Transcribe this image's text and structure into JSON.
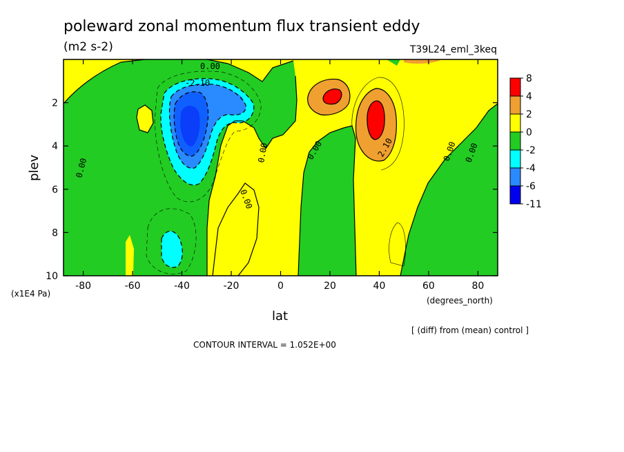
{
  "title": "poleward zonal momentum flux transient eddy",
  "units": "(m2 s-2)",
  "run_name": "T39L24_eml_3keq",
  "diff_note": "[ (diff) from (mean) control ]",
  "contour_interval": "CONTOUR INTERVAL = 1.052E+00",
  "chart_data": {
    "type": "heatmap",
    "xlabel": "lat",
    "xunits": "(degrees_north)",
    "ylabel": "plev",
    "yunits": "(x1E4 Pa)",
    "xlim": [
      -88,
      88
    ],
    "ylim": [
      10,
      0
    ],
    "xticks": [
      "-80",
      "-60",
      "-40",
      "-20",
      "0",
      "20",
      "40",
      "60",
      "80"
    ],
    "yticks": [
      "2",
      "4",
      "6",
      "8",
      "10"
    ],
    "legend": {
      "placement": "right",
      "labels": [
        "8",
        "4",
        "2",
        "0",
        "-2",
        "-4",
        "-6",
        "-11"
      ],
      "colors": [
        "#ff0000",
        "#f0a030",
        "#ffff00",
        "#22cc22",
        "#00ffff",
        "#2a8aff",
        "#0000ee"
      ]
    },
    "contour_labels": [
      "0.00",
      "-2.10",
      "0.00",
      "0.00",
      "0.00",
      "0.00",
      "2.10",
      "0.00",
      "0.00"
    ],
    "features": [
      {
        "lat": -37,
        "plev": 3.0,
        "value": -11
      },
      {
        "lat": -22,
        "plev": 1.9,
        "value": -6
      },
      {
        "lat": -45,
        "plev": 8.8,
        "value": -4
      },
      {
        "lat": 21,
        "plev": 1.8,
        "value": 6
      },
      {
        "lat": 38,
        "plev": 2.9,
        "value": 7
      }
    ]
  }
}
